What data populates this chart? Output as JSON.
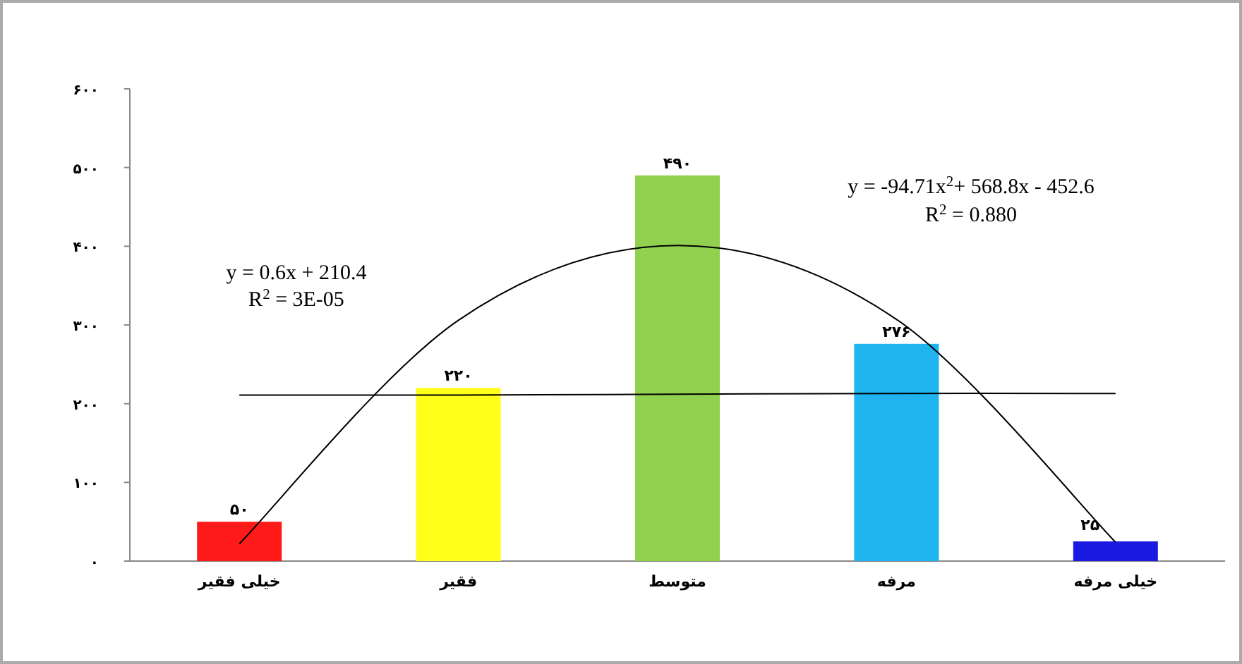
{
  "chart_data": {
    "type": "bar",
    "categories": [
      "خیلی فقیر",
      "فقیر",
      "متوسط",
      "مرفه",
      "خیلی مرفه"
    ],
    "series": [
      {
        "colors": [
          "#ff1a1a",
          "#ffff1a",
          "#92d050",
          "#1fb4f0",
          "#1a1ae0"
        ],
        "values": [
          50,
          220,
          490,
          276,
          25
        ],
        "value_labels": [
          "۵۰",
          "۲۲۰",
          "۴۹۰",
          "۲۷۶",
          "۲۵"
        ]
      },
      {
        "type": "line",
        "color": "#000000",
        "values": [
          211,
          211,
          212,
          213,
          213
        ]
      },
      {
        "type": "line",
        "color": "#000000",
        "values": [
          22,
          306,
          401,
          307,
          24
        ]
      }
    ],
    "ylim": [
      0,
      600
    ],
    "yticks": [
      {
        "value": 0,
        "label": "۰"
      },
      {
        "value": 100,
        "label": "۱۰۰"
      },
      {
        "value": 200,
        "label": "۲۰۰"
      },
      {
        "value": 300,
        "label": "۳۰۰"
      },
      {
        "value": 400,
        "label": "۴۰۰"
      },
      {
        "value": 500,
        "label": "۵۰۰"
      },
      {
        "value": 600,
        "label": "۶۰۰"
      }
    ],
    "annotations": [
      "y = 0.6x + 210.4",
      "R$^{2}$ = 3E-05",
      "y = -94.71x$^{2}$+ 568.8x - 452.6",
      "R$^{2}$ = 0.880"
    ]
  }
}
